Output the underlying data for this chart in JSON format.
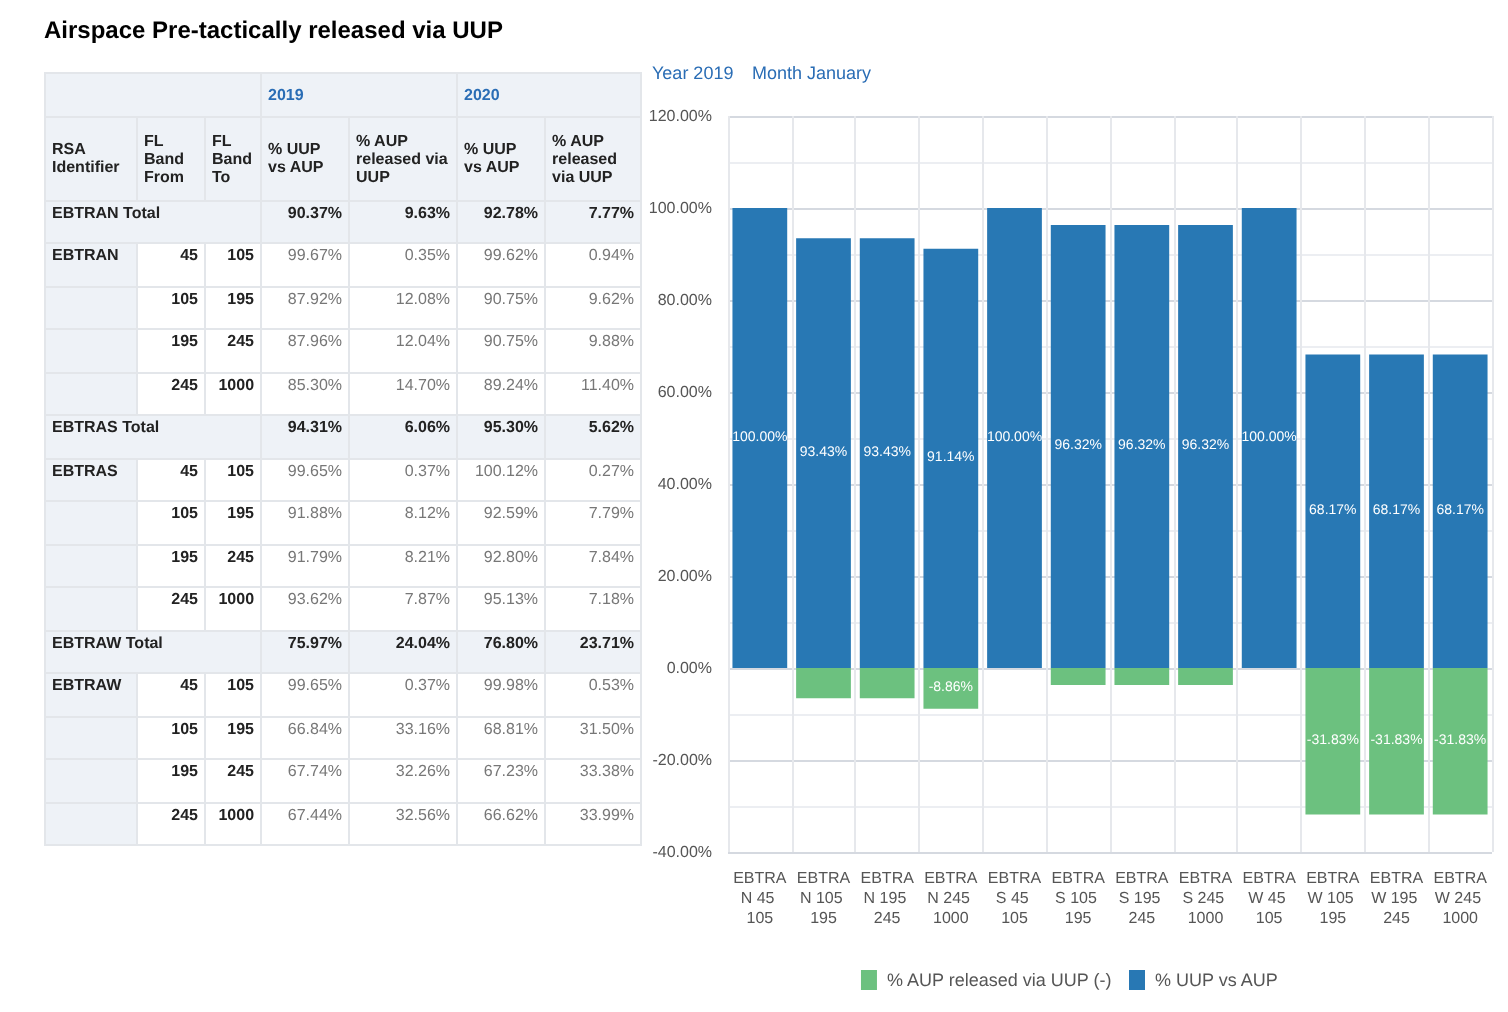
{
  "chart_data": [
    {
      "type": "other",
      "title": "Airspace Pre-tactically released via UUP",
      "cell_labels": [
        [
          null,
          null,
          null,
          "2019",
          null,
          "2020",
          null
        ],
        [
          "RSA Identifier",
          "FL Band From",
          "FL Band To",
          "% UUP vs AUP",
          "% AUP released via UUP",
          "% UUP vs AUP",
          "% AUP released via UUP"
        ],
        [
          "EBTRAN Total",
          null,
          null,
          "90.37%",
          "9.63%",
          "92.78%",
          "7.77%"
        ],
        [
          "EBTRAN",
          "45",
          "105",
          "99.67%",
          "0.35%",
          "99.62%",
          "0.94%"
        ],
        [
          null,
          "105",
          "195",
          "87.92%",
          "12.08%",
          "90.75%",
          "9.62%"
        ],
        [
          null,
          "195",
          "245",
          "87.96%",
          "12.04%",
          "90.75%",
          "9.88%"
        ],
        [
          null,
          "245",
          "1000",
          "85.30%",
          "14.70%",
          "89.24%",
          "11.40%"
        ],
        [
          "EBTRAS Total",
          null,
          null,
          "94.31%",
          "6.06%",
          "95.30%",
          "5.62%"
        ],
        [
          "EBTRAS",
          "45",
          "105",
          "99.65%",
          "0.37%",
          "100.12%",
          "0.27%"
        ],
        [
          null,
          "105",
          "195",
          "91.88%",
          "8.12%",
          "92.59%",
          "7.79%"
        ],
        [
          null,
          "195",
          "245",
          "91.79%",
          "8.21%",
          "92.80%",
          "7.84%"
        ],
        [
          null,
          "245",
          "1000",
          "93.62%",
          "7.87%",
          "95.13%",
          "7.18%"
        ],
        [
          "EBTRAW Total",
          null,
          null,
          "75.97%",
          "24.04%",
          "76.80%",
          "23.71%"
        ],
        [
          "EBTRAW",
          "45",
          "105",
          "99.65%",
          "0.37%",
          "99.98%",
          "0.53%"
        ],
        [
          null,
          "105",
          "195",
          "66.84%",
          "33.16%",
          "68.81%",
          "31.50%"
        ],
        [
          null,
          "195",
          "245",
          "67.74%",
          "32.26%",
          "67.23%",
          "33.38%"
        ],
        [
          null,
          "245",
          "1000",
          "67.44%",
          "32.56%",
          "66.62%",
          "33.99%"
        ]
      ]
    },
    {
      "type": "bar",
      "stacked": true,
      "annotations": [
        "Year 2019",
        "Month January"
      ],
      "categories": [
        "EBTRAN 45 105",
        "EBTRAN 105 195",
        "EBTRAN 195 245",
        "EBTRAN 245 1000",
        "EBTRAS 45 105",
        "EBTRAS 105 195",
        "EBTRAS 195 245",
        "EBTRAS 245 1000",
        "EBTRAW 45 105",
        "EBTRAW 105 195",
        "EBTRAW 195 245",
        "EBTRAW 245 1000"
      ],
      "series": [
        {
          "name": "% AUP released via UUP (-)",
          "color": "#6cc17f",
          "values": [
            0,
            -6.6,
            -6.6,
            -8.86,
            0,
            -3.7,
            -3.7,
            -3.7,
            0,
            -31.83,
            -31.83,
            -31.83
          ],
          "value_labels": [
            null,
            null,
            null,
            "-8.86%",
            null,
            null,
            null,
            null,
            null,
            "-31.83%",
            "-31.83%",
            "-31.83%"
          ]
        },
        {
          "name": "% UUP vs AUP",
          "color": "#2878b4",
          "values": [
            100,
            93.43,
            93.43,
            91.14,
            100,
            96.32,
            96.32,
            96.32,
            100,
            68.17,
            68.17,
            68.17
          ],
          "value_labels": [
            "100.00%",
            "93.43%",
            "93.43%",
            "91.14%",
            "100.00%",
            "96.32%",
            "96.32%",
            "96.32%",
            "100.00%",
            "68.17%",
            "68.17%",
            "68.17%"
          ]
        }
      ],
      "ylim": [
        -40,
        120
      ],
      "yticks": [
        {
          "value": -40,
          "label": "-40.00%"
        },
        {
          "value": -20,
          "label": "-20.00%"
        },
        {
          "value": 0,
          "label": "0.00%"
        },
        {
          "value": 20,
          "label": "20.00%"
        },
        {
          "value": 40,
          "label": "40.00%"
        },
        {
          "value": 60,
          "label": "60.00%"
        },
        {
          "value": 80,
          "label": "80.00%"
        },
        {
          "value": 100,
          "label": "100.00%"
        },
        {
          "value": 120,
          "label": "120.00%"
        }
      ],
      "grid": true,
      "legend": "bottom"
    }
  ]
}
